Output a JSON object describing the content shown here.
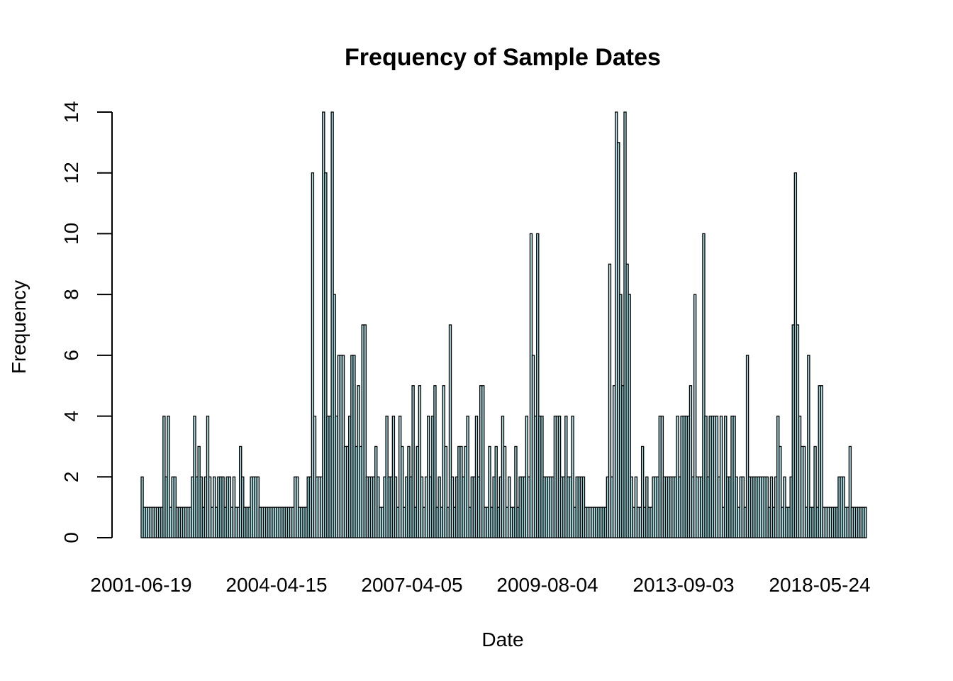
{
  "chart_data": {
    "type": "bar",
    "title": "Frequency of Sample Dates",
    "xlabel": "Date",
    "ylabel": "Frequency",
    "ylim": [
      0,
      14
    ],
    "y_ticks": [
      0,
      2,
      4,
      6,
      8,
      10,
      12,
      14
    ],
    "x_tick_labels": [
      "2001-06-19",
      "2004-04-15",
      "2007-04-05",
      "2009-08-04",
      "2013-09-03",
      "2018-05-24"
    ],
    "bar_fill": "#a9dfe4",
    "bar_stroke": "#000000",
    "grid": false,
    "values": [
      2,
      1,
      1,
      1,
      1,
      1,
      1,
      1,
      1,
      1,
      4,
      2,
      4,
      1,
      2,
      2,
      1,
      1,
      1,
      1,
      1,
      1,
      1,
      2,
      4,
      2,
      3,
      2,
      1,
      2,
      4,
      2,
      1,
      2,
      1,
      2,
      2,
      2,
      1,
      2,
      2,
      1,
      2,
      1,
      1,
      3,
      2,
      1,
      1,
      1,
      2,
      2,
      2,
      2,
      1,
      1,
      1,
      1,
      1,
      1,
      1,
      1,
      1,
      1,
      1,
      1,
      1,
      1,
      1,
      1,
      2,
      2,
      1,
      1,
      1,
      1,
      2,
      2,
      12,
      4,
      2,
      2,
      2,
      14,
      12,
      4,
      4,
      14,
      8,
      4,
      6,
      6,
      6,
      3,
      3,
      4,
      6,
      6,
      3,
      5,
      3,
      7,
      7,
      2,
      2,
      2,
      2,
      3,
      2,
      1,
      1,
      2,
      4,
      2,
      2,
      4,
      2,
      1,
      4,
      3,
      1,
      2,
      3,
      2,
      5,
      1,
      3,
      5,
      2,
      1,
      2,
      4,
      2,
      4,
      5,
      1,
      2,
      1,
      5,
      3,
      1,
      7,
      2,
      1,
      2,
      3,
      3,
      2,
      3,
      4,
      1,
      2,
      2,
      4,
      2,
      5,
      5,
      1,
      1,
      3,
      1,
      2,
      3,
      1,
      2,
      4,
      3,
      1,
      2,
      1,
      1,
      3,
      1,
      2,
      2,
      2,
      4,
      2,
      10,
      6,
      4,
      10,
      4,
      4,
      2,
      2,
      2,
      2,
      2,
      4,
      4,
      4,
      2,
      2,
      4,
      2,
      2,
      4,
      1,
      2,
      2,
      2,
      2,
      1,
      1,
      1,
      1,
      1,
      1,
      1,
      1,
      1,
      1,
      2,
      9,
      2,
      5,
      14,
      13,
      8,
      5,
      14,
      9,
      8,
      2,
      1,
      2,
      1,
      1,
      3,
      1,
      2,
      1,
      1,
      2,
      2,
      2,
      4,
      4,
      2,
      2,
      2,
      2,
      2,
      2,
      4,
      2,
      4,
      4,
      4,
      4,
      5,
      2,
      8,
      2,
      2,
      2,
      10,
      4,
      2,
      4,
      4,
      4,
      4,
      2,
      4,
      1,
      4,
      2,
      2,
      4,
      4,
      2,
      1,
      2,
      2,
      1,
      6,
      2,
      2,
      2,
      2,
      2,
      2,
      2,
      2,
      2,
      1,
      2,
      1,
      2,
      4,
      3,
      1,
      2,
      1,
      1,
      2,
      7,
      12,
      7,
      4,
      3,
      3,
      1,
      6,
      1,
      1,
      3,
      1,
      5,
      5,
      1,
      1,
      1,
      1,
      1,
      1,
      1,
      2,
      2,
      2,
      1,
      1,
      3,
      1,
      1,
      1,
      1,
      1,
      1,
      1
    ]
  }
}
